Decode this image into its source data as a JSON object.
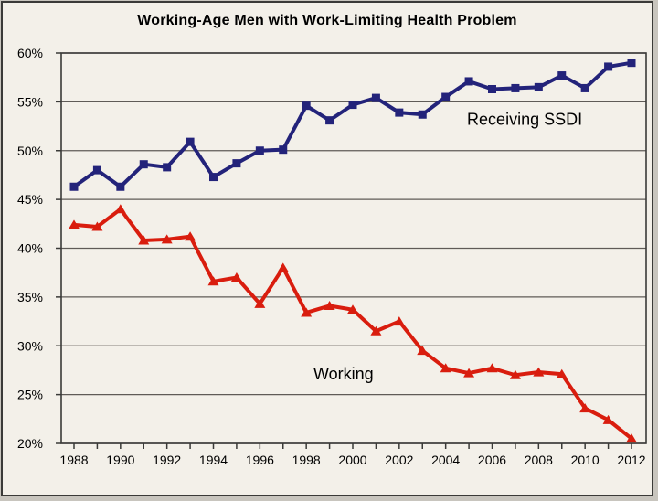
{
  "title": "Working-Age Men with Work-Limiting Health Problem",
  "colors": {
    "background": "#f3f0e9",
    "frame_border": "#3a3a38",
    "plot_border": "#3a3a38",
    "gridline": "#5f5b57",
    "tick": "#3a3a38",
    "text": "#000000",
    "ssdi_line": "#23237a",
    "working_line": "#d91d0e"
  },
  "chart_data": {
    "type": "line",
    "title": "Working-Age Men with Work-Limiting Health Problem",
    "x": [
      1988,
      1989,
      1990,
      1991,
      1992,
      1993,
      1994,
      1995,
      1996,
      1997,
      1998,
      1999,
      2000,
      2001,
      2002,
      2003,
      2004,
      2005,
      2006,
      2007,
      2008,
      2009,
      2010,
      2011,
      2012
    ],
    "x_axis": {
      "tick_every_years": 1,
      "label_every_years": 2,
      "labels": [
        "1988",
        "1990",
        "1992",
        "1994",
        "1996",
        "1998",
        "2000",
        "2002",
        "2004",
        "2006",
        "2008",
        "2010",
        "2012"
      ]
    },
    "y_axis": {
      "min": 20,
      "max": 60,
      "step": 5,
      "unit": "%",
      "labels": [
        "60%",
        "55%",
        "50%",
        "45%",
        "40%",
        "35%",
        "30%",
        "25%",
        "20%"
      ]
    },
    "grid": "horizontal",
    "legend_position": "none (inline series labels)",
    "series": [
      {
        "name": "Receiving SSDI",
        "color": "#23237a",
        "marker": "square",
        "values": [
          46.3,
          48.0,
          46.3,
          48.6,
          48.3,
          50.9,
          47.3,
          48.7,
          50.0,
          50.1,
          54.6,
          53.1,
          54.7,
          55.4,
          53.9,
          53.7,
          55.5,
          57.1,
          56.3,
          56.4,
          56.5,
          57.7,
          56.4,
          58.6,
          59.0
        ]
      },
      {
        "name": "Working",
        "color": "#d91d0e",
        "marker": "triangle",
        "values": [
          42.4,
          42.2,
          44.0,
          40.8,
          40.9,
          41.2,
          36.6,
          37.0,
          34.3,
          38.0,
          33.4,
          34.1,
          33.7,
          31.5,
          32.5,
          29.5,
          27.7,
          27.2,
          27.7,
          27.0,
          27.3,
          27.1,
          23.6,
          22.4,
          20.5
        ]
      }
    ],
    "annotations": [
      {
        "text": "Receiving SSDI",
        "x": 2007.4,
        "y": 53.2
      },
      {
        "text": "Working",
        "x": 1999.6,
        "y": 27.1
      }
    ]
  }
}
